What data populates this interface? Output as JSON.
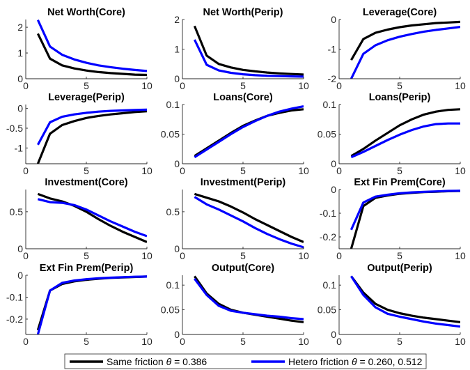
{
  "colors": {
    "series_same": "#000000",
    "series_hetero": "#0000ff",
    "axis": "#262626",
    "background": "#ffffff"
  },
  "legend": {
    "entries": [
      {
        "label_prefix": "Same friction ",
        "theta": "θ",
        "label_suffix": " = 0.386",
        "color": "#000000"
      },
      {
        "label_prefix": "Hetero friction ",
        "theta": "θ",
        "label_suffix": " = 0.260, 0.512",
        "color": "#0000ff"
      }
    ]
  },
  "chart_data": [
    {
      "type": "line",
      "title": "Net Worth(Core)",
      "x": [
        1,
        2,
        3,
        4,
        5,
        6,
        7,
        8,
        9,
        10
      ],
      "xlim": [
        0,
        10
      ],
      "ylim": [
        0,
        2.3
      ],
      "xticks": [
        0,
        5,
        10
      ],
      "xtick_labels": [
        "0",
        "5",
        "10"
      ],
      "yticks": [
        0,
        1,
        2
      ],
      "ytick_labels": [
        "0",
        "1",
        "2"
      ],
      "series": [
        {
          "name": "Same friction θ = 0.386",
          "color": "#000000",
          "values": [
            1.75,
            0.78,
            0.52,
            0.4,
            0.32,
            0.26,
            0.22,
            0.19,
            0.16,
            0.15
          ]
        },
        {
          "name": "Hetero friction θ = 0.260, 0.512",
          "color": "#0000ff",
          "values": [
            2.28,
            1.25,
            0.93,
            0.75,
            0.62,
            0.52,
            0.45,
            0.39,
            0.34,
            0.3
          ]
        }
      ]
    },
    {
      "type": "line",
      "title": "Net Worth(Perip)",
      "x": [
        1,
        2,
        3,
        4,
        5,
        6,
        7,
        8,
        9,
        10
      ],
      "xlim": [
        0,
        10
      ],
      "ylim": [
        0,
        2
      ],
      "xticks": [
        0,
        5,
        10
      ],
      "xtick_labels": [
        "0",
        "5",
        "10"
      ],
      "yticks": [
        0,
        1,
        2
      ],
      "ytick_labels": [
        "0",
        "1",
        "2"
      ],
      "series": [
        {
          "name": "Same friction θ = 0.386",
          "color": "#000000",
          "values": [
            1.78,
            0.78,
            0.5,
            0.38,
            0.3,
            0.25,
            0.21,
            0.18,
            0.16,
            0.14
          ]
        },
        {
          "name": "Hetero friction θ = 0.260, 0.512",
          "color": "#0000ff",
          "values": [
            1.32,
            0.47,
            0.28,
            0.2,
            0.15,
            0.12,
            0.1,
            0.09,
            0.08,
            0.07
          ]
        }
      ]
    },
    {
      "type": "line",
      "title": "Leverage(Core)",
      "x": [
        1,
        2,
        3,
        4,
        5,
        6,
        7,
        8,
        9,
        10
      ],
      "xlim": [
        0,
        10
      ],
      "ylim": [
        -2,
        0
      ],
      "xticks": [
        0,
        5,
        10
      ],
      "xtick_labels": [
        "0",
        "5",
        "10"
      ],
      "yticks": [
        -2,
        -1,
        0
      ],
      "ytick_labels": [
        "-2",
        "-1",
        "0"
      ],
      "series": [
        {
          "name": "Same friction θ = 0.386",
          "color": "#000000",
          "values": [
            -1.37,
            -0.66,
            -0.45,
            -0.34,
            -0.26,
            -0.2,
            -0.16,
            -0.12,
            -0.1,
            -0.08
          ]
        },
        {
          "name": "Hetero friction θ = 0.260, 0.512",
          "color": "#0000ff",
          "values": [
            -2.0,
            -1.16,
            -0.87,
            -0.7,
            -0.58,
            -0.49,
            -0.41,
            -0.35,
            -0.3,
            -0.25
          ]
        }
      ]
    },
    {
      "type": "line",
      "title": "Leverage(Perip)",
      "x": [
        1,
        2,
        3,
        4,
        5,
        6,
        7,
        8,
        9,
        10
      ],
      "xlim": [
        0,
        10
      ],
      "ylim": [
        -1.4,
        0.1
      ],
      "xticks": [
        0,
        5,
        10
      ],
      "xtick_labels": [
        "0",
        "5",
        "10"
      ],
      "yticks": [
        -1,
        -0.5,
        0
      ],
      "ytick_labels": [
        "-1",
        "-0.5",
        "0"
      ],
      "series": [
        {
          "name": "Same friction θ = 0.386",
          "color": "#000000",
          "values": [
            -1.4,
            -0.64,
            -0.42,
            -0.32,
            -0.24,
            -0.19,
            -0.15,
            -0.12,
            -0.09,
            -0.07
          ]
        },
        {
          "name": "Hetero friction θ = 0.260, 0.512",
          "color": "#0000ff",
          "values": [
            -0.92,
            -0.35,
            -0.21,
            -0.15,
            -0.11,
            -0.08,
            -0.06,
            -0.05,
            -0.04,
            -0.03
          ]
        }
      ]
    },
    {
      "type": "line",
      "title": "Loans(Core)",
      "x": [
        1,
        2,
        3,
        4,
        5,
        6,
        7,
        8,
        9,
        10
      ],
      "xlim": [
        0,
        10
      ],
      "ylim": [
        0,
        0.1
      ],
      "xticks": [
        0,
        5,
        10
      ],
      "xtick_labels": [
        "0",
        "5",
        "10"
      ],
      "yticks": [
        0,
        0.05,
        0.1
      ],
      "ytick_labels": [
        "0",
        "0.05",
        "0.1"
      ],
      "series": [
        {
          "name": "Same friction θ = 0.386",
          "color": "#000000",
          "values": [
            0.013,
            0.026,
            0.039,
            0.052,
            0.064,
            0.073,
            0.081,
            0.086,
            0.09,
            0.092
          ]
        },
        {
          "name": "Hetero friction θ = 0.260, 0.512",
          "color": "#0000ff",
          "values": [
            0.011,
            0.024,
            0.037,
            0.05,
            0.062,
            0.072,
            0.081,
            0.088,
            0.093,
            0.097
          ]
        }
      ]
    },
    {
      "type": "line",
      "title": "Loans(Perip)",
      "x": [
        1,
        2,
        3,
        4,
        5,
        6,
        7,
        8,
        9,
        10
      ],
      "xlim": [
        0,
        10
      ],
      "ylim": [
        0,
        0.1
      ],
      "xticks": [
        0,
        5,
        10
      ],
      "xtick_labels": [
        "0",
        "5",
        "10"
      ],
      "yticks": [
        0,
        0.05,
        0.1
      ],
      "ytick_labels": [
        "0",
        "0.05",
        "0.1"
      ],
      "series": [
        {
          "name": "Same friction θ = 0.386",
          "color": "#000000",
          "values": [
            0.013,
            0.025,
            0.039,
            0.052,
            0.065,
            0.075,
            0.083,
            0.088,
            0.091,
            0.092
          ]
        },
        {
          "name": "Hetero friction θ = 0.260, 0.512",
          "color": "#0000ff",
          "values": [
            0.011,
            0.02,
            0.03,
            0.04,
            0.049,
            0.057,
            0.063,
            0.067,
            0.068,
            0.068
          ]
        }
      ]
    },
    {
      "type": "line",
      "title": "Investment(Core)",
      "x": [
        1,
        2,
        3,
        4,
        5,
        6,
        7,
        8,
        9,
        10
      ],
      "xlim": [
        0,
        10
      ],
      "ylim": [
        0,
        0.8
      ],
      "xticks": [
        0,
        5,
        10
      ],
      "xtick_labels": [
        "0",
        "5",
        "10"
      ],
      "yticks": [
        0,
        0.5
      ],
      "ytick_labels": [
        "0",
        "0.5"
      ],
      "series": [
        {
          "name": "Same friction θ = 0.386",
          "color": "#000000",
          "values": [
            0.74,
            0.68,
            0.64,
            0.58,
            0.5,
            0.4,
            0.31,
            0.23,
            0.16,
            0.09
          ]
        },
        {
          "name": "Hetero friction θ = 0.260, 0.512",
          "color": "#0000ff",
          "values": [
            0.67,
            0.63,
            0.62,
            0.59,
            0.53,
            0.45,
            0.37,
            0.3,
            0.23,
            0.17
          ]
        }
      ]
    },
    {
      "type": "line",
      "title": "Investment(Perip)",
      "x": [
        1,
        2,
        3,
        4,
        5,
        6,
        7,
        8,
        9,
        10
      ],
      "xlim": [
        0,
        10
      ],
      "ylim": [
        0,
        0.8
      ],
      "xticks": [
        0,
        5,
        10
      ],
      "xtick_labels": [
        "0",
        "5",
        "10"
      ],
      "yticks": [
        0,
        0.5
      ],
      "ytick_labels": [
        "0",
        "0.5"
      ],
      "series": [
        {
          "name": "Same friction θ = 0.386",
          "color": "#000000",
          "values": [
            0.74,
            0.69,
            0.64,
            0.57,
            0.49,
            0.4,
            0.32,
            0.24,
            0.16,
            0.09
          ]
        },
        {
          "name": "Hetero friction θ = 0.260, 0.512",
          "color": "#0000ff",
          "values": [
            0.7,
            0.6,
            0.53,
            0.45,
            0.37,
            0.28,
            0.2,
            0.13,
            0.07,
            0.02
          ]
        }
      ]
    },
    {
      "type": "line",
      "title": "Ext Fin Prem(Core)",
      "x": [
        1,
        2,
        3,
        4,
        5,
        6,
        7,
        8,
        9,
        10
      ],
      "xlim": [
        0,
        10
      ],
      "ylim": [
        -0.25,
        0
      ],
      "xticks": [
        0,
        5,
        10
      ],
      "xtick_labels": [
        "0",
        "5",
        "10"
      ],
      "yticks": [
        -0.2,
        -0.1,
        0
      ],
      "ytick_labels": [
        "-0.2",
        "-0.1",
        "0"
      ],
      "series": [
        {
          "name": "Same friction θ = 0.386",
          "color": "#000000",
          "values": [
            -0.25,
            -0.07,
            -0.035,
            -0.025,
            -0.018,
            -0.014,
            -0.011,
            -0.009,
            -0.007,
            -0.006
          ]
        },
        {
          "name": "Hetero friction θ = 0.260, 0.512",
          "color": "#0000ff",
          "values": [
            -0.17,
            -0.055,
            -0.03,
            -0.022,
            -0.016,
            -0.012,
            -0.01,
            -0.008,
            -0.006,
            -0.005
          ]
        }
      ]
    },
    {
      "type": "line",
      "title": "Ext Fin Prem(Perip)",
      "x": [
        1,
        2,
        3,
        4,
        5,
        6,
        7,
        8,
        9,
        10
      ],
      "xlim": [
        0,
        10
      ],
      "ylim": [
        -0.27,
        0
      ],
      "xticks": [
        0,
        5,
        10
      ],
      "xtick_labels": [
        "0",
        "5",
        "10"
      ],
      "yticks": [
        -0.2,
        -0.1,
        0
      ],
      "ytick_labels": [
        "-0.2",
        "-0.1",
        "0"
      ],
      "series": [
        {
          "name": "Same friction θ = 0.386",
          "color": "#000000",
          "values": [
            -0.25,
            -0.07,
            -0.04,
            -0.028,
            -0.021,
            -0.016,
            -0.012,
            -0.01,
            -0.008,
            -0.006
          ]
        },
        {
          "name": "Hetero friction θ = 0.260, 0.512",
          "color": "#0000ff",
          "values": [
            -0.27,
            -0.07,
            -0.035,
            -0.024,
            -0.018,
            -0.014,
            -0.011,
            -0.009,
            -0.007,
            -0.006
          ]
        }
      ]
    },
    {
      "type": "line",
      "title": "Output(Core)",
      "x": [
        1,
        2,
        3,
        4,
        5,
        6,
        7,
        8,
        9,
        10
      ],
      "xlim": [
        0,
        10
      ],
      "ylim": [
        0,
        0.12
      ],
      "xticks": [
        0,
        5,
        10
      ],
      "xtick_labels": [
        "0",
        "5",
        "10"
      ],
      "yticks": [
        0,
        0.05,
        0.1
      ],
      "ytick_labels": [
        "0",
        "0.05",
        "0.1"
      ],
      "series": [
        {
          "name": "Same friction θ = 0.386",
          "color": "#000000",
          "values": [
            0.118,
            0.083,
            0.062,
            0.05,
            0.044,
            0.04,
            0.036,
            0.032,
            0.028,
            0.025
          ]
        },
        {
          "name": "Hetero friction θ = 0.260, 0.512",
          "color": "#0000ff",
          "values": [
            0.113,
            0.08,
            0.058,
            0.048,
            0.044,
            0.041,
            0.038,
            0.036,
            0.033,
            0.031
          ]
        }
      ]
    },
    {
      "type": "line",
      "title": "Output(Perip)",
      "x": [
        1,
        2,
        3,
        4,
        5,
        6,
        7,
        8,
        9,
        10
      ],
      "xlim": [
        0,
        10
      ],
      "ylim": [
        0,
        0.12
      ],
      "xticks": [
        0,
        5,
        10
      ],
      "xtick_labels": [
        "0",
        "5",
        "10"
      ],
      "yticks": [
        0,
        0.05,
        0.1
      ],
      "ytick_labels": [
        "0",
        "0.05",
        "0.1"
      ],
      "series": [
        {
          "name": "Same friction θ = 0.386",
          "color": "#000000",
          "values": [
            0.118,
            0.085,
            0.062,
            0.05,
            0.043,
            0.038,
            0.034,
            0.031,
            0.028,
            0.025
          ]
        },
        {
          "name": "Hetero friction θ = 0.260, 0.512",
          "color": "#0000ff",
          "values": [
            0.118,
            0.08,
            0.055,
            0.042,
            0.036,
            0.031,
            0.026,
            0.022,
            0.019,
            0.016
          ]
        }
      ]
    }
  ]
}
